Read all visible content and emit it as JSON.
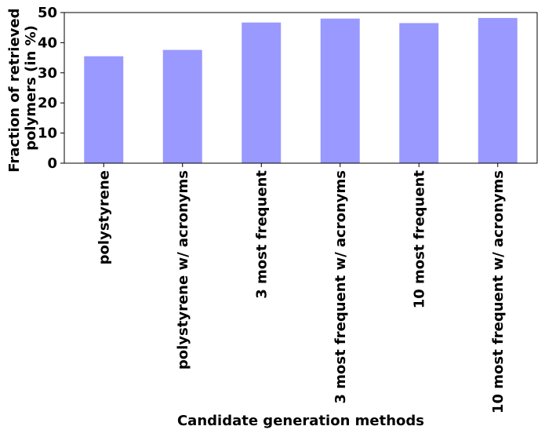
{
  "chart_data": {
    "type": "bar",
    "title": "",
    "xlabel": "Candidate generation methods",
    "ylabel_lines": [
      "Fraction of retrieved",
      "polymers (in %)"
    ],
    "categories": [
      "polystyrene",
      "polystyrene w/ acronyms",
      "3 most frequent",
      "3 most frequent w/ acronyms",
      "10 most frequent",
      "10 most frequent w/ acronyms"
    ],
    "values": [
      35.5,
      37.6,
      46.7,
      48.0,
      46.5,
      48.2
    ],
    "ylim": [
      0,
      50
    ],
    "yticks": [
      0,
      10,
      20,
      30,
      40,
      50
    ],
    "bar_color": "#9999ff",
    "grid": false,
    "legend": "none"
  }
}
